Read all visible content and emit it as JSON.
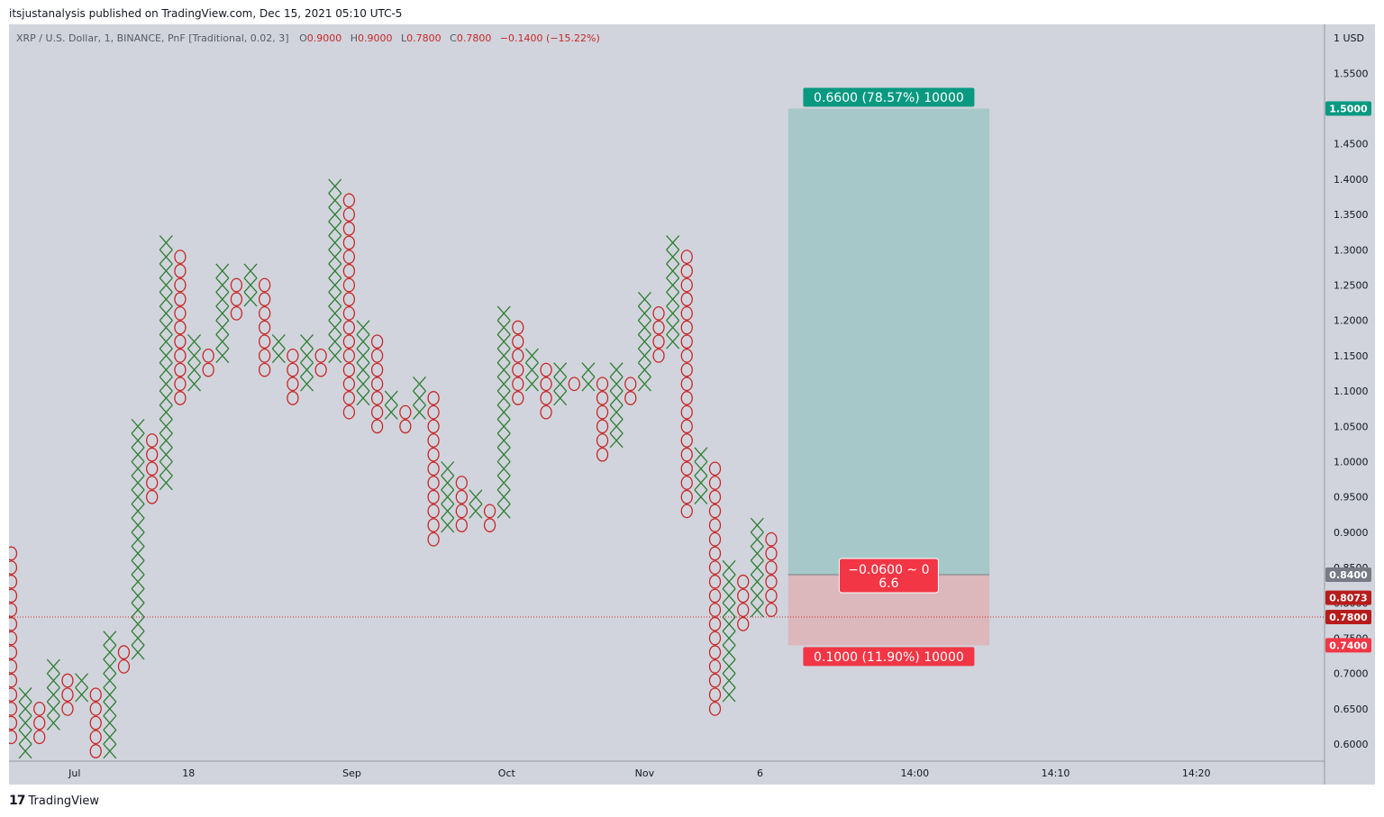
{
  "publisher": "itsjustanalysis published on TradingView.com, Dec 15, 2021 05:10 UTC-5",
  "header": {
    "symbol": "XRP / U.S. Dollar, 1, BINANCE, PnF [Traditional, 0.02, 3]",
    "o_label": "O",
    "o": "0.9000",
    "h_label": "H",
    "h": "0.9000",
    "l_label": "L",
    "l": "0.7800",
    "c_label": "C",
    "c": "0.7800",
    "change": "−0.1400 (−15.22%)"
  },
  "footer": {
    "brand": "TradingView",
    "logo_text": "17"
  },
  "colors": {
    "x": "#2e7d32",
    "o": "#c62828",
    "plot_bg": "#d1d4dc",
    "profit": "#a6c8c8",
    "loss": "#dcb7bb",
    "profit_label": "#089981",
    "loss_label": "#f23645",
    "entry_tag": "#787b86",
    "price_tag": "#b71c1c"
  },
  "chart_data": {
    "type": "point-and-figure",
    "box_size": 0.02,
    "reversal": 3,
    "y_unit": "USD",
    "y_axis_unit_label": "1 USD",
    "ylim": [
      0.575,
      1.61
    ],
    "yticks": [
      "0.6000",
      "0.6500",
      "0.7000",
      "0.7500",
      "0.8000",
      "0.8500",
      "0.9000",
      "0.9500",
      "1.0000",
      "1.0500",
      "1.1000",
      "1.1500",
      "1.2000",
      "1.2500",
      "1.3000",
      "1.3500",
      "1.4000",
      "1.4500",
      "1.5000",
      "1.5500"
    ],
    "xticks": [
      {
        "label": "Jul",
        "col": 4.5
      },
      {
        "label": "18",
        "col": 12.6
      },
      {
        "label": "Sep",
        "col": 24.2
      },
      {
        "label": "Oct",
        "col": 35.2
      },
      {
        "label": "Nov",
        "col": 45.0
      },
      {
        "label": "6",
        "col": 53.2
      },
      {
        "label": "14:00",
        "col": 64.2
      },
      {
        "label": "14:10",
        "col": 74.2
      },
      {
        "label": "14:20",
        "col": 84.2
      }
    ],
    "columns": [
      {
        "type": "O",
        "low": 0.6,
        "high": 0.88
      },
      {
        "type": "X",
        "low": 0.58,
        "high": 0.68
      },
      {
        "type": "O",
        "low": 0.6,
        "high": 0.66
      },
      {
        "type": "X",
        "low": 0.62,
        "high": 0.72
      },
      {
        "type": "O",
        "low": 0.64,
        "high": 0.7
      },
      {
        "type": "X",
        "low": 0.66,
        "high": 0.7
      },
      {
        "type": "O",
        "low": 0.58,
        "high": 0.68
      },
      {
        "type": "X",
        "low": 0.58,
        "high": 0.76
      },
      {
        "type": "O",
        "low": 0.7,
        "high": 0.74
      },
      {
        "type": "X",
        "low": 0.72,
        "high": 1.06
      },
      {
        "type": "O",
        "low": 0.94,
        "high": 1.04
      },
      {
        "type": "X",
        "low": 0.96,
        "high": 1.32
      },
      {
        "type": "O",
        "low": 1.08,
        "high": 1.3
      },
      {
        "type": "X",
        "low": 1.1,
        "high": 1.18
      },
      {
        "type": "O",
        "low": 1.12,
        "high": 1.16
      },
      {
        "type": "X",
        "low": 1.14,
        "high": 1.28
      },
      {
        "type": "O",
        "low": 1.2,
        "high": 1.26
      },
      {
        "type": "X",
        "low": 1.22,
        "high": 1.28
      },
      {
        "type": "O",
        "low": 1.12,
        "high": 1.26
      },
      {
        "type": "X",
        "low": 1.14,
        "high": 1.18
      },
      {
        "type": "O",
        "low": 1.08,
        "high": 1.16
      },
      {
        "type": "X",
        "low": 1.1,
        "high": 1.18
      },
      {
        "type": "O",
        "low": 1.12,
        "high": 1.16
      },
      {
        "type": "X",
        "low": 1.14,
        "high": 1.4
      },
      {
        "type": "O",
        "low": 1.06,
        "high": 1.38
      },
      {
        "type": "X",
        "low": 1.08,
        "high": 1.2
      },
      {
        "type": "O",
        "low": 1.04,
        "high": 1.18
      },
      {
        "type": "X",
        "low": 1.06,
        "high": 1.1
      },
      {
        "type": "O",
        "low": 1.04,
        "high": 1.08
      },
      {
        "type": "X",
        "low": 1.06,
        "high": 1.12
      },
      {
        "type": "O",
        "low": 0.88,
        "high": 1.1
      },
      {
        "type": "X",
        "low": 0.9,
        "high": 1.0
      },
      {
        "type": "O",
        "low": 0.9,
        "high": 0.98
      },
      {
        "type": "X",
        "low": 0.92,
        "high": 0.96
      },
      {
        "type": "O",
        "low": 0.9,
        "high": 0.94
      },
      {
        "type": "X",
        "low": 0.92,
        "high": 1.22
      },
      {
        "type": "O",
        "low": 1.08,
        "high": 1.2
      },
      {
        "type": "X",
        "low": 1.1,
        "high": 1.16
      },
      {
        "type": "O",
        "low": 1.06,
        "high": 1.14
      },
      {
        "type": "X",
        "low": 1.08,
        "high": 1.14
      },
      {
        "type": "O",
        "low": 1.1,
        "high": 1.12
      },
      {
        "type": "X",
        "low": 1.1,
        "high": 1.14
      },
      {
        "type": "O",
        "low": 1.0,
        "high": 1.12
      },
      {
        "type": "X",
        "low": 1.02,
        "high": 1.14
      },
      {
        "type": "O",
        "low": 1.08,
        "high": 1.12
      },
      {
        "type": "X",
        "low": 1.1,
        "high": 1.24
      },
      {
        "type": "O",
        "low": 1.14,
        "high": 1.22
      },
      {
        "type": "X",
        "low": 1.16,
        "high": 1.32
      },
      {
        "type": "O",
        "low": 0.92,
        "high": 1.3
      },
      {
        "type": "X",
        "low": 0.94,
        "high": 1.02
      },
      {
        "type": "O",
        "low": 0.64,
        "high": 1.0
      },
      {
        "type": "X",
        "low": 0.66,
        "high": 0.86
      },
      {
        "type": "O",
        "low": 0.76,
        "high": 0.84
      },
      {
        "type": "X",
        "low": 0.78,
        "high": 0.92
      },
      {
        "type": "O",
        "low": 0.78,
        "high": 0.9
      }
    ],
    "position": {
      "type": "long",
      "entry": 0.84,
      "target": 1.5,
      "stop": 0.74,
      "start_col": 55.2,
      "end_col": 69.5,
      "profit_label": "0.6600 (78.57%) 10000",
      "loss_label": "0.1000 (11.90%) 10000",
      "center_line1": "−0.0600 ~ 0",
      "center_line2": "6.6"
    },
    "price_tags": [
      {
        "value": "1.5000",
        "y": 1.5,
        "color": "#089981"
      },
      {
        "value": "0.8400",
        "y": 0.84,
        "color": "#787b86"
      },
      {
        "value": "0.8073",
        "y": 0.8073,
        "color": "#b71c1c"
      },
      {
        "value": "0.7800",
        "y": 0.78,
        "color": "#b71c1c"
      },
      {
        "value": "0.7400",
        "y": 0.74,
        "color": "#f23645"
      }
    ],
    "last_price": 0.78
  }
}
